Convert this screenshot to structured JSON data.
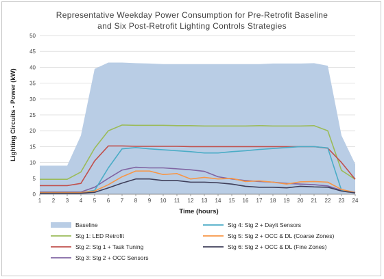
{
  "chart_data": {
    "type": "area+line",
    "title_line1": "Representative Weekday Power Consumption for Pre-Retrofit Baseline",
    "title_line2": "and Six Post-Retrofit Lighting Controls Strategies",
    "xlabel": "Time (hours)",
    "ylabel": "Lighting Circuits - Power (kW)",
    "xlim": [
      1,
      24
    ],
    "ylim": [
      0,
      50
    ],
    "x": [
      1,
      2,
      3,
      4,
      5,
      6,
      7,
      8,
      9,
      10,
      11,
      12,
      13,
      14,
      15,
      16,
      17,
      18,
      19,
      20,
      21,
      22,
      23,
      24
    ],
    "x_ticks": [
      1,
      2,
      3,
      4,
      5,
      6,
      7,
      8,
      9,
      10,
      11,
      12,
      13,
      14,
      15,
      16,
      17,
      18,
      19,
      20,
      21,
      22,
      23,
      24
    ],
    "y_ticks": [
      0,
      5,
      10,
      15,
      20,
      25,
      30,
      35,
      40,
      45,
      50
    ],
    "grid": "horizontal",
    "legend_position": "bottom",
    "series": [
      {
        "name": "Baseline",
        "style": "area",
        "color": "#b9cde5",
        "values": [
          9,
          9,
          9,
          18.5,
          39.5,
          41.5,
          41.5,
          41.3,
          41.2,
          41.0,
          41.0,
          41.0,
          41.0,
          41.0,
          41.0,
          41.0,
          41.0,
          41.2,
          41.2,
          41.2,
          41.3,
          40.5,
          18.5,
          9.5
        ]
      },
      {
        "name": "Stg 1: LED Retrofit",
        "style": "line",
        "color": "#9bbb59",
        "values": [
          4.7,
          4.7,
          4.7,
          7.0,
          14.5,
          20.0,
          21.8,
          21.7,
          21.7,
          21.7,
          21.6,
          21.6,
          21.5,
          21.5,
          21.5,
          21.5,
          21.6,
          21.5,
          21.5,
          21.5,
          21.6,
          20.0,
          7.5,
          4.7
        ]
      },
      {
        "name": "Stg 2: Stg 1 + Task Tuning",
        "style": "line",
        "color": "#c0504d",
        "values": [
          2.7,
          2.7,
          2.7,
          3.4,
          10.5,
          15.2,
          15.2,
          15.1,
          15.1,
          15.1,
          15.1,
          15.0,
          15.0,
          15.0,
          15.0,
          15.0,
          15.0,
          15.0,
          15.0,
          15.0,
          15.0,
          14.5,
          10.0,
          4.7
        ]
      },
      {
        "name": "Stg 3: Stg 2 + OCC Sensors",
        "style": "line",
        "color": "#8064a2",
        "values": [
          0.7,
          0.7,
          0.7,
          0.7,
          2.2,
          5.0,
          7.6,
          8.5,
          8.3,
          8.3,
          8.0,
          7.7,
          7.2,
          5.5,
          4.8,
          4.3,
          4.0,
          3.8,
          3.4,
          3.2,
          3.0,
          2.6,
          1.2,
          0.6
        ]
      },
      {
        "name": "Stg 4: Stg 2 + Daylt Sensors",
        "style": "line",
        "color": "#4bacc6",
        "values": [
          0.5,
          0.5,
          0.5,
          0.5,
          1.2,
          8.3,
          14.3,
          14.7,
          14.3,
          14.0,
          13.7,
          13.4,
          13.0,
          13.0,
          13.4,
          13.7,
          14.1,
          14.4,
          14.7,
          15.0,
          15.0,
          14.6,
          1.2,
          0.5
        ]
      },
      {
        "name": "Stg 5: Stg 2 + OCC & DL (Coarse Zones)",
        "style": "line",
        "color": "#f79646",
        "values": [
          0.5,
          0.5,
          0.5,
          0.5,
          1.0,
          3.0,
          5.5,
          7.3,
          7.3,
          6.2,
          6.5,
          4.8,
          5.3,
          4.8,
          5.0,
          4.0,
          4.2,
          3.8,
          3.2,
          3.9,
          4.0,
          3.8,
          1.5,
          0.5
        ]
      },
      {
        "name": "Stg 6: Stg 2 + OCC & DL (Fine Zones)",
        "style": "line",
        "color": "#3f3f5a",
        "values": [
          0.3,
          0.3,
          0.3,
          0.3,
          0.6,
          2.0,
          3.5,
          4.8,
          4.8,
          4.3,
          4.3,
          3.8,
          3.8,
          3.6,
          3.2,
          2.5,
          2.2,
          2.2,
          2.0,
          2.5,
          2.3,
          2.2,
          1.0,
          0.4
        ]
      }
    ]
  }
}
